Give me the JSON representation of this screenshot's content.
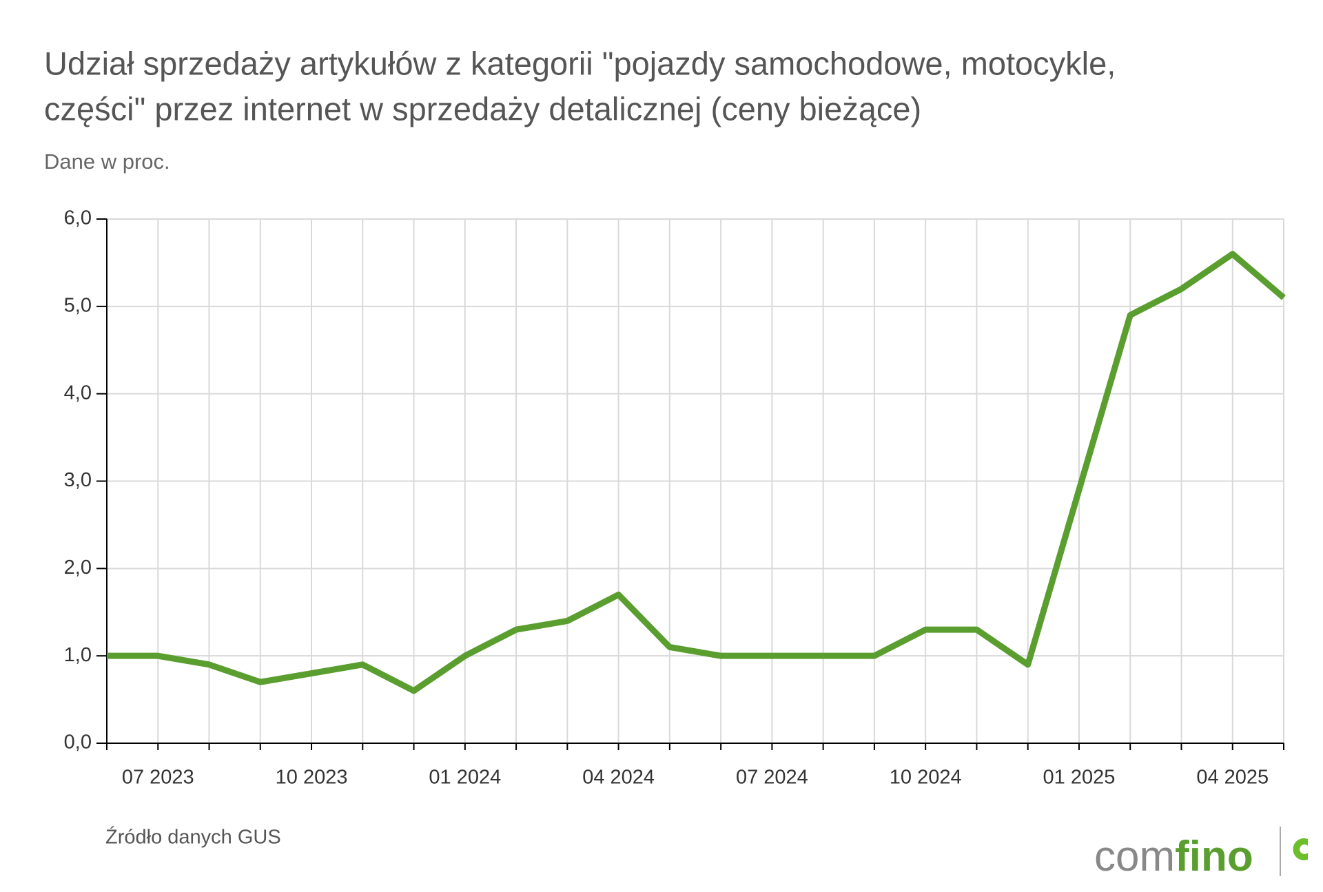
{
  "chart_data": {
    "type": "line",
    "title": [
      "Udział sprzedaży artykułów z kategorii \"pojazdy samochodowe, motocykle,",
      "części\" przez internet w sprzedaży detalicznej (ceny bieżące)"
    ],
    "subtitle": "Dane w proc.",
    "source": "Źródło danych GUS",
    "logo": [
      "com",
      "fino"
    ],
    "categories": [
      null,
      "07 2023",
      null,
      null,
      "10 2023",
      null,
      null,
      "01 2024",
      null,
      null,
      "04 2024",
      null,
      null,
      "07 2024",
      null,
      null,
      "10 2024",
      null,
      null,
      "01 2025",
      null,
      null,
      "04 2025",
      null
    ],
    "values": [
      1.0,
      1.0,
      0.9,
      0.7,
      0.8,
      0.9,
      0.6,
      1.0,
      1.3,
      1.4,
      1.7,
      1.1,
      1.0,
      1.0,
      1.0,
      1.0,
      1.3,
      1.3,
      0.9,
      2.9,
      4.9,
      5.2,
      5.6,
      5.1
    ],
    "color": "#5a9e2f",
    "ylim": [
      0,
      6
    ],
    "yticks": [
      {
        "value": 0,
        "label": "0,0"
      },
      {
        "value": 1,
        "label": "1,0"
      },
      {
        "value": 2,
        "label": "2,0"
      },
      {
        "value": 3,
        "label": "3,0"
      },
      {
        "value": 4,
        "label": "4,0"
      },
      {
        "value": 5,
        "label": "5,0"
      },
      {
        "value": 6,
        "label": "6,0"
      }
    ],
    "grid": true
  }
}
